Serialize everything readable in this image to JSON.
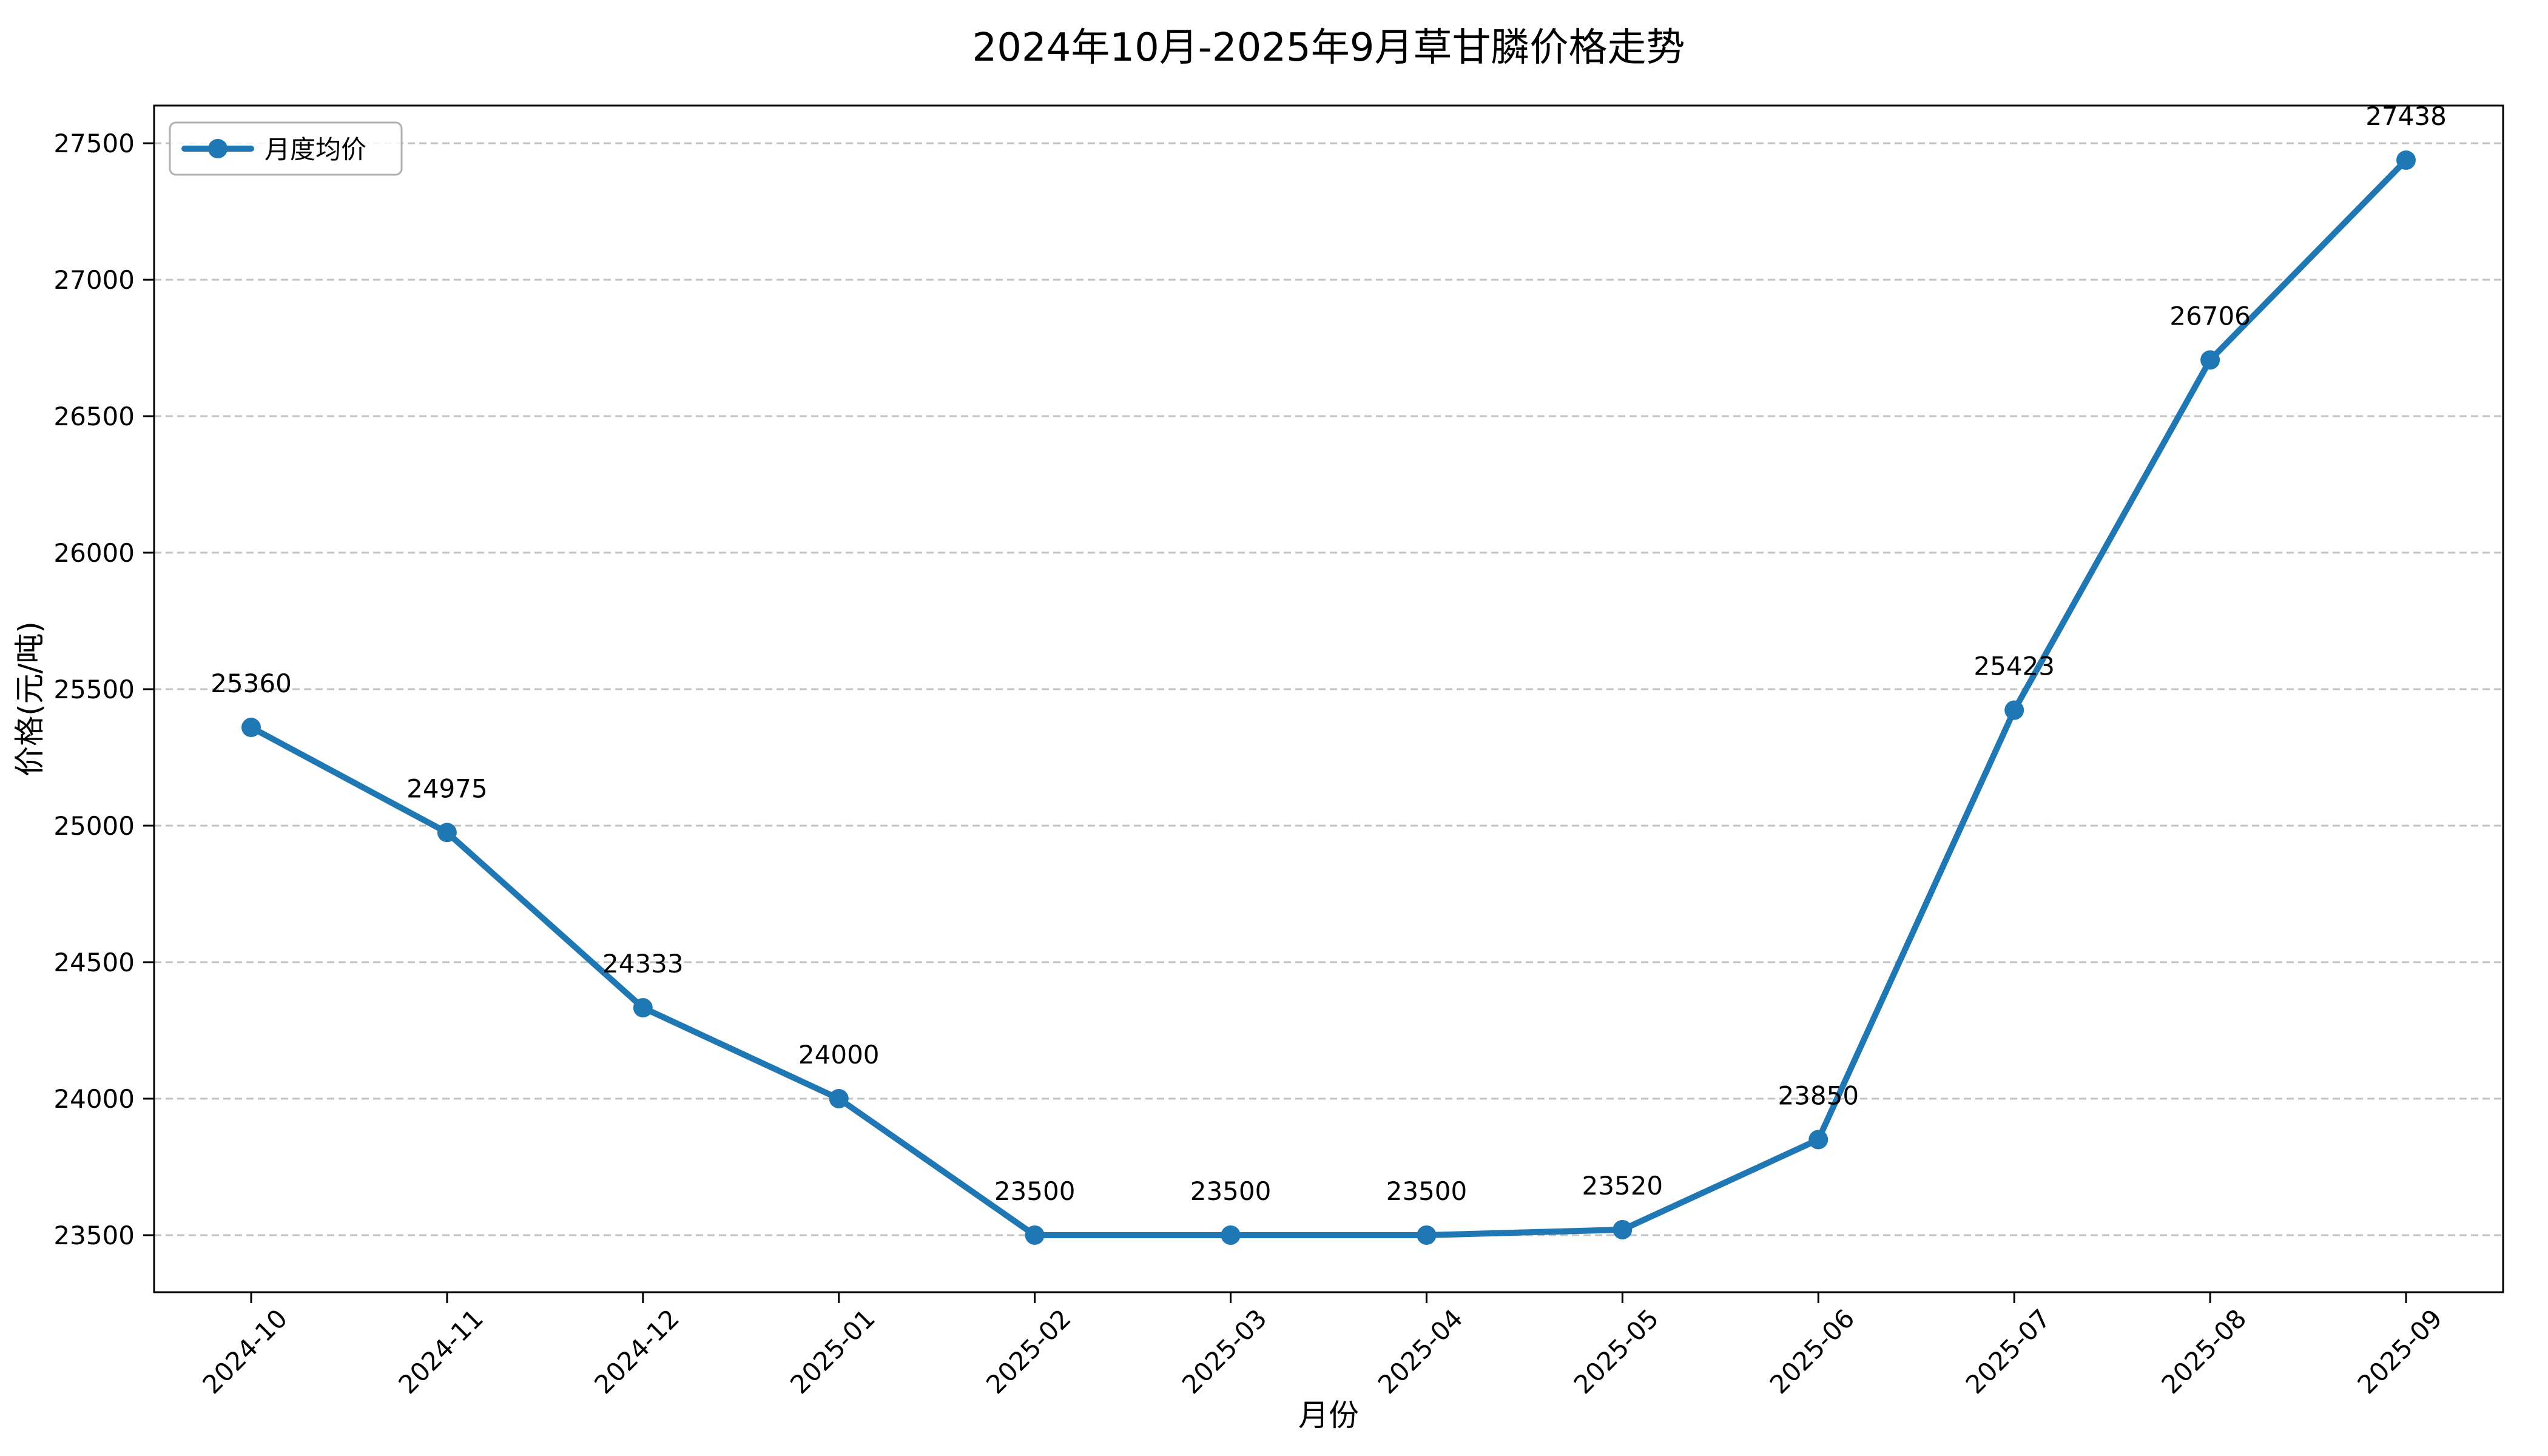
{
  "chart_data": {
    "type": "line",
    "title": "2024年10月-2025年9月草甘膦价格走势",
    "xlabel": "月份",
    "ylabel": "价格(元/吨)",
    "legend": [
      "月度均价"
    ],
    "legend_position": "upper left",
    "grid": "horizontal-dashed",
    "marker": "circle",
    "categories": [
      "2024-10",
      "2024-11",
      "2024-12",
      "2025-01",
      "2025-02",
      "2025-03",
      "2025-04",
      "2025-05",
      "2025-06",
      "2025-07",
      "2025-08",
      "2025-09"
    ],
    "series": [
      {
        "name": "月度均价",
        "values": [
          25360,
          24975,
          24333,
          24000,
          23500,
          23500,
          23500,
          23520,
          23850,
          25423,
          26706,
          27438
        ]
      }
    ],
    "yticks": [
      23500,
      24000,
      24500,
      25000,
      25500,
      26000,
      26500,
      27000,
      27500
    ],
    "ylim": [
      23291,
      27638
    ],
    "colors": {
      "line": "#1f77b4",
      "grid": "#b0b0b0",
      "axis": "#000000",
      "background": "#ffffff"
    }
  }
}
